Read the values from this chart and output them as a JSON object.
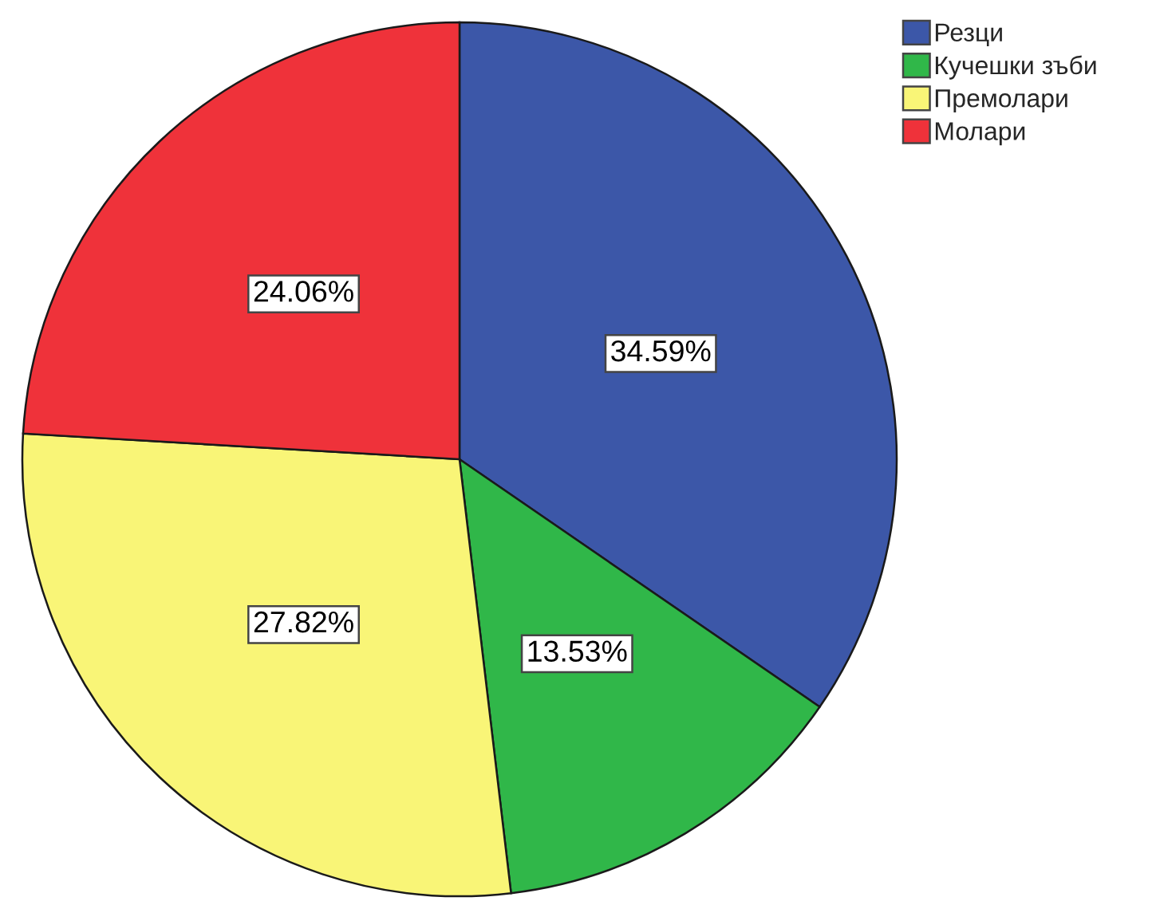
{
  "chart_data": {
    "type": "pie",
    "categories": [
      "Резци",
      "Кучешки зъби",
      "Премолари",
      "Молари"
    ],
    "values": [
      34.59,
      13.53,
      27.82,
      24.06
    ],
    "colors": [
      "#3c57a8",
      "#30b749",
      "#f9f577",
      "#ef323a"
    ],
    "value_labels": [
      "34.59%",
      "13.53%",
      "27.82%",
      "24.06%"
    ],
    "legend": "top right"
  }
}
